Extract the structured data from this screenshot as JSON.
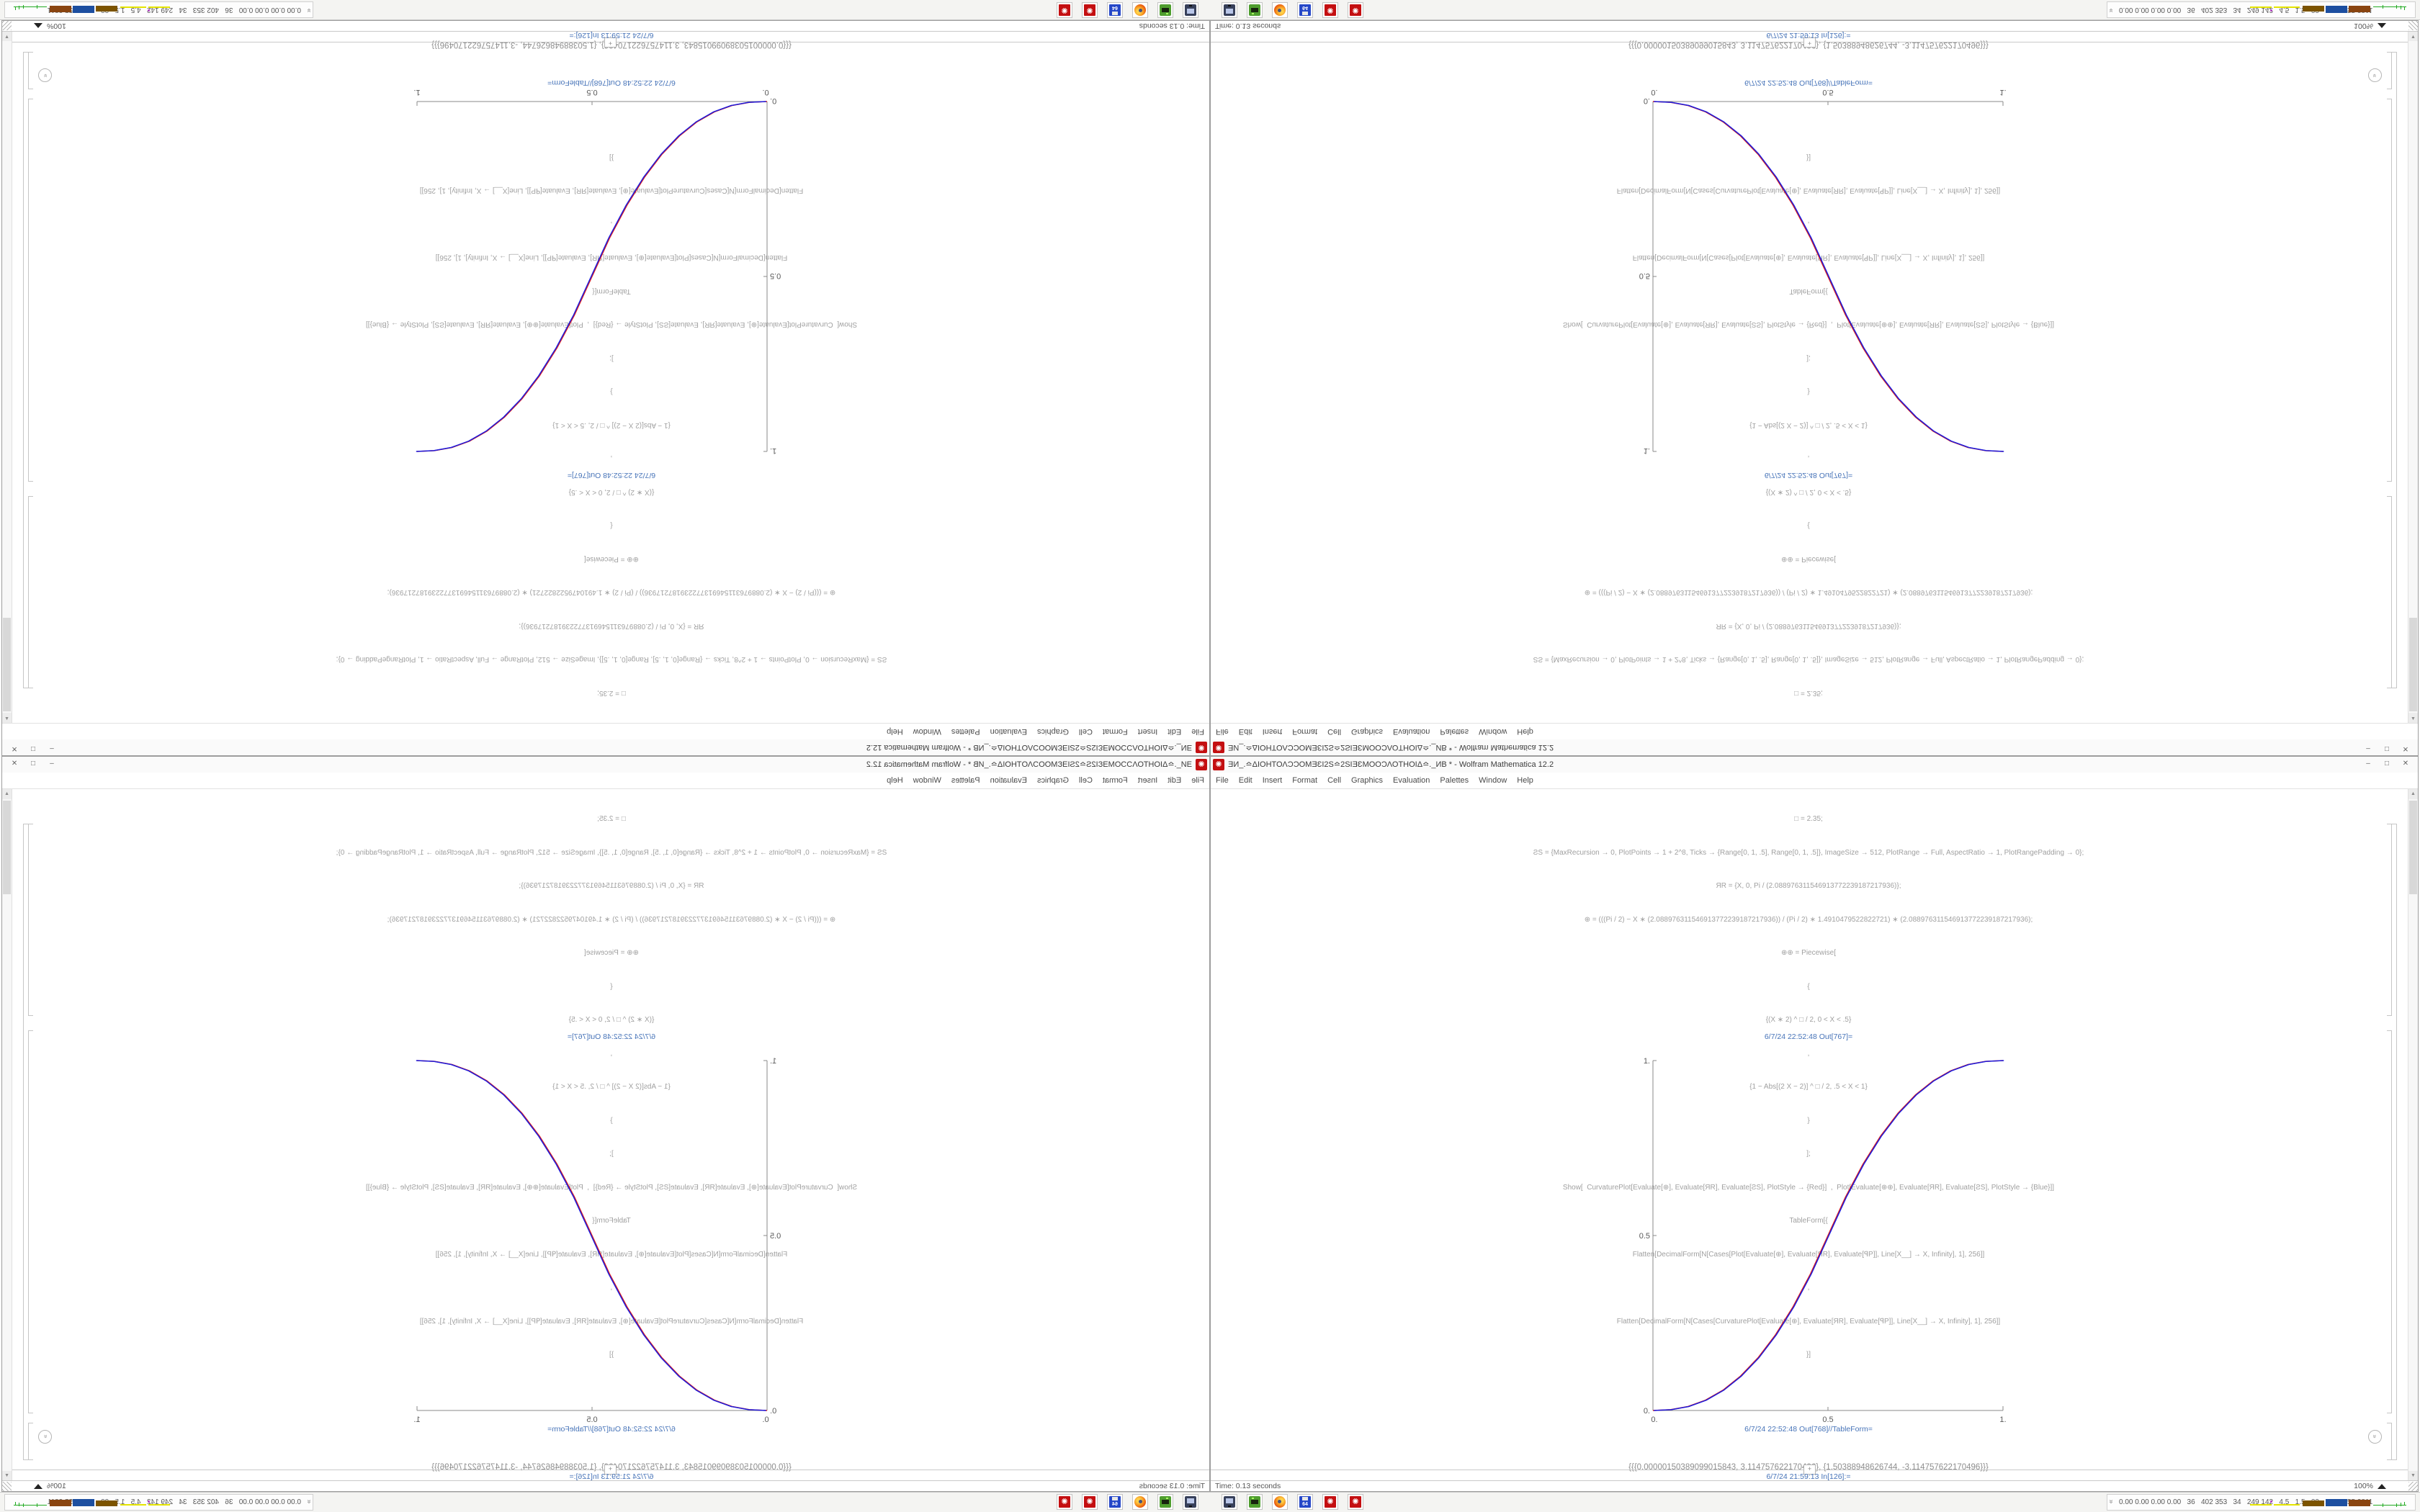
{
  "window": {
    "title": "ƎИ_.≏ΔΙΟΗΤΟΛϽϽΟΜƎƐΙ2S≏2SΙƎƐΜΟΟϽΛΟΤΗΟΙΔ≏._ИΒ * - Wolfram Mathematica 12.2",
    "menu": [
      "File",
      "Edit",
      "Insert",
      "Format",
      "Cell",
      "Graphics",
      "Evaluation",
      "Palettes",
      "Window",
      "Help"
    ],
    "controls": {
      "minimize": "–",
      "maximize": "□",
      "close": "✕"
    }
  },
  "notebook": {
    "code_lines": [
      "□ = 2.35;",
      "ƧS = {MaxRecursion → 0, PlotPoints → 1 + 2^8, Ticks → {Range[0, 1, .5], Range[0, 1, .5]}, ImageSize → 512, PlotRange → Full, AspectRatio → 1, PlotRangePadding → 0};",
      "ЯR = {X, 0, Pi / (2.088976311546913772239187217936)};",
      "⊕ = (((Pi / 2) − X ∗ (2.088976311546913772239187217936)) / (Pi / 2) ∗ 1.4910479522822721) ∗ (2.088976311546913772239187217936);",
      "⊕⊕ = Piecewise[",
      "{",
      "{(X ∗ 2) ^ □ / 2, 0 < X < .5}",
      ",",
      "{1 − Abs[(2 X − 2)] ^ □ / 2, .5 < X < 1}",
      "}",
      "];",
      "Show[  CurvaturePlot[Evaluate[⊕], Evaluate[ЯR], Evaluate[ƧS], PlotStyle → {Red}]  ,  Plot[Evaluate[⊕⊕], Evaluate[ЯR], Evaluate[ƧS], PlotStyle → {Blue}]]",
      "TableForm[{",
      "Flatten[DecimalForm[N[Cases[Plot[Evaluate[⊕], Evaluate[ЯR], Evaluate[ꟼP]], Line[X__] → X, Infinity], 1], 256]]",
      ",",
      "Flatten[DecimalForm[N[Cases[CurvaturePlot[Evaluate[⊕], Evaluate[ЯR], Evaluate[ꟼP]], Line[X__] → X, Infinity], 1], 256]]",
      "}]"
    ],
    "out_plot_label": "6/7/24 22:52:48 Out[767]=",
    "out_table_label": "6/7/24 22:52:48 Out[768]//TableForm=",
    "table_lines": [
      "{{{0.00000150389099015843, 3.114757622170496}, {1.50388948626744, -3.114757622170496}}}",
      "{{{0., 0.}, {1.00000000000001, 1.00000000000003}}}"
    ],
    "pending_label": "6/7/24 21:59:13 In[126]:=",
    "insert_plus": "+",
    "jump_glyph": "»",
    "scroll_up": "▲",
    "scroll_down": "▼"
  },
  "status_bar": {
    "left": "Time: 0.13 seconds",
    "zoom": "100%"
  },
  "taskbar": {
    "icons": [
      {
        "name": "screen-capture-icon"
      },
      {
        "name": "green-terminal-icon"
      },
      {
        "name": "firefox-icon"
      },
      {
        "name": "floppy-64-icon",
        "label": "64"
      },
      {
        "name": "mathematica-spikey-icon"
      },
      {
        "name": "mathematica-spikey-icon"
      }
    ],
    "tray_chevron": "«",
    "tray_values": "0.00 0.00 0.00 0.00   36   402 353   34   249 142   4.5   1.5   33   29   2955 3811"
  },
  "app_icon_glyph": "✺",
  "chart_data": {
    "type": "line",
    "title": "",
    "xlabel": "",
    "ylabel": "",
    "xlim": [
      0,
      1
    ],
    "ylim": [
      0,
      1
    ],
    "grid": false,
    "legend": "none",
    "x_ticks": [
      "0.",
      "0.5",
      "1."
    ],
    "y_ticks": [
      "0.",
      "0.5",
      "1."
    ],
    "x": [
      0,
      0.05,
      0.1,
      0.15,
      0.2,
      0.25,
      0.3,
      0.35,
      0.4,
      0.45,
      0.5,
      0.55,
      0.6,
      0.65,
      0.7,
      0.75,
      0.8,
      0.85,
      0.9,
      0.95,
      1
    ],
    "series": [
      {
        "name": "CurvaturePlot (Red)",
        "color": "#dd1c1c",
        "y": [
          0,
          0.0022,
          0.0114,
          0.0295,
          0.058,
          0.0981,
          0.1505,
          0.2162,
          0.296,
          0.3903,
          0.5,
          0.6097,
          0.704,
          0.7838,
          0.8495,
          0.9019,
          0.942,
          0.9705,
          0.9886,
          0.9978,
          1
        ]
      },
      {
        "name": "Plot (Blue)",
        "color": "#1c1cdd",
        "y": [
          0,
          0.0022,
          0.0114,
          0.0295,
          0.058,
          0.0981,
          0.1505,
          0.2162,
          0.296,
          0.3903,
          0.5,
          0.6097,
          0.704,
          0.7838,
          0.8495,
          0.9019,
          0.942,
          0.9705,
          0.9886,
          0.9978,
          1
        ]
      }
    ]
  }
}
